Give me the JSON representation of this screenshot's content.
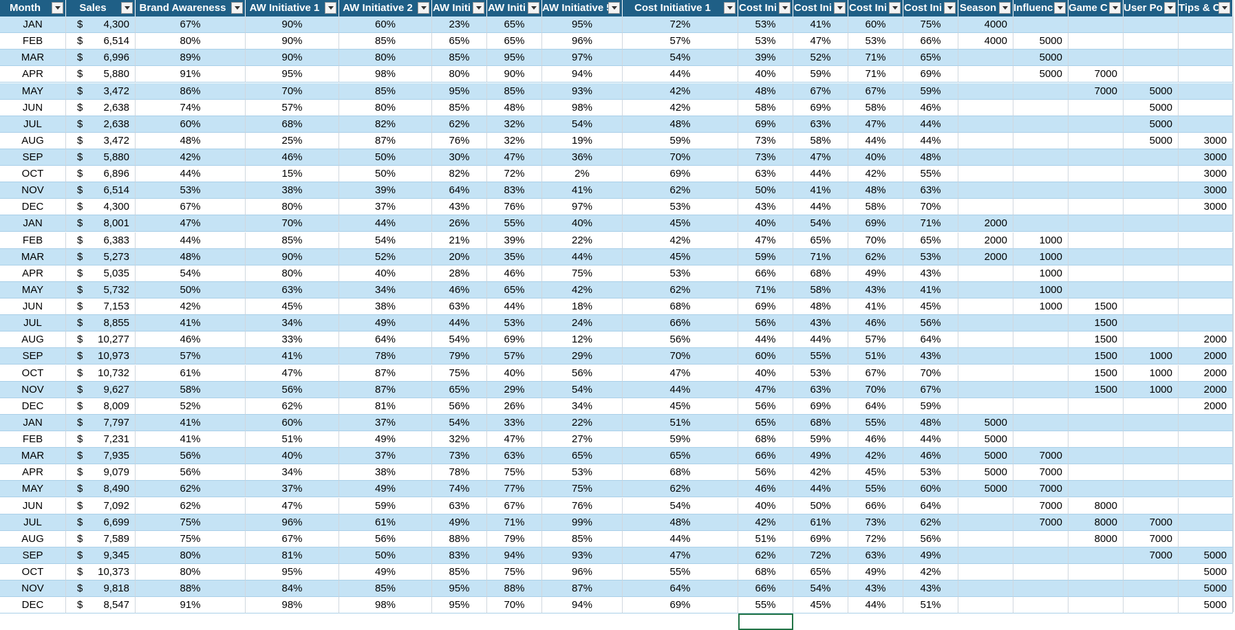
{
  "columns": [
    {
      "key": "month",
      "label": "Month"
    },
    {
      "key": "sales",
      "label": "Sales"
    },
    {
      "key": "brand",
      "label": "Brand Awareness"
    },
    {
      "key": "aw1",
      "label": "AW Initiative 1"
    },
    {
      "key": "aw2",
      "label": "AW Initiative 2"
    },
    {
      "key": "aw3",
      "label": "AW Initi"
    },
    {
      "key": "aw4",
      "label": "AW Initi"
    },
    {
      "key": "aw5",
      "label": "AW Initiative 5"
    },
    {
      "key": "cost1",
      "label": "Cost Initiative 1"
    },
    {
      "key": "cost2",
      "label": "Cost Ini"
    },
    {
      "key": "cost3",
      "label": "Cost Ini"
    },
    {
      "key": "cost4",
      "label": "Cost Ini"
    },
    {
      "key": "cost5",
      "label": "Cost Ini"
    },
    {
      "key": "season",
      "label": "Season"
    },
    {
      "key": "influencer",
      "label": "Influenc"
    },
    {
      "key": "game",
      "label": "Game C"
    },
    {
      "key": "userpo",
      "label": "User Po"
    },
    {
      "key": "tips",
      "label": "Tips & C"
    }
  ],
  "currency_symbol": "$",
  "selected_cell": {
    "row": 36,
    "col": "cost2"
  },
  "rows": [
    [
      "JAN",
      "4,300",
      "67%",
      "90%",
      "60%",
      "23%",
      "65%",
      "95%",
      "72%",
      "53%",
      "41%",
      "60%",
      "75%",
      "4000",
      "",
      "",
      "",
      ""
    ],
    [
      "FEB",
      "6,514",
      "80%",
      "90%",
      "85%",
      "65%",
      "65%",
      "96%",
      "57%",
      "53%",
      "47%",
      "53%",
      "66%",
      "4000",
      "5000",
      "",
      "",
      ""
    ],
    [
      "MAR",
      "6,996",
      "89%",
      "90%",
      "80%",
      "85%",
      "95%",
      "97%",
      "54%",
      "39%",
      "52%",
      "71%",
      "65%",
      "",
      "5000",
      "",
      "",
      ""
    ],
    [
      "APR",
      "5,880",
      "91%",
      "95%",
      "98%",
      "80%",
      "90%",
      "94%",
      "44%",
      "40%",
      "59%",
      "71%",
      "69%",
      "",
      "5000",
      "7000",
      "",
      ""
    ],
    [
      "MAY",
      "3,472",
      "86%",
      "70%",
      "85%",
      "95%",
      "85%",
      "93%",
      "42%",
      "48%",
      "67%",
      "67%",
      "59%",
      "",
      "",
      "7000",
      "5000",
      ""
    ],
    [
      "JUN",
      "2,638",
      "74%",
      "57%",
      "80%",
      "85%",
      "48%",
      "98%",
      "42%",
      "58%",
      "69%",
      "58%",
      "46%",
      "",
      "",
      "",
      "5000",
      ""
    ],
    [
      "JUL",
      "2,638",
      "60%",
      "68%",
      "82%",
      "62%",
      "32%",
      "54%",
      "48%",
      "69%",
      "63%",
      "47%",
      "44%",
      "",
      "",
      "",
      "5000",
      ""
    ],
    [
      "AUG",
      "3,472",
      "48%",
      "25%",
      "87%",
      "76%",
      "32%",
      "19%",
      "59%",
      "73%",
      "58%",
      "44%",
      "44%",
      "",
      "",
      "",
      "5000",
      "3000"
    ],
    [
      "SEP",
      "5,880",
      "42%",
      "46%",
      "50%",
      "30%",
      "47%",
      "36%",
      "70%",
      "73%",
      "47%",
      "40%",
      "48%",
      "",
      "",
      "",
      "",
      "3000"
    ],
    [
      "OCT",
      "6,896",
      "44%",
      "15%",
      "50%",
      "82%",
      "72%",
      "2%",
      "69%",
      "63%",
      "44%",
      "42%",
      "55%",
      "",
      "",
      "",
      "",
      "3000"
    ],
    [
      "NOV",
      "6,514",
      "53%",
      "38%",
      "39%",
      "64%",
      "83%",
      "41%",
      "62%",
      "50%",
      "41%",
      "48%",
      "63%",
      "",
      "",
      "",
      "",
      "3000"
    ],
    [
      "DEC",
      "4,300",
      "67%",
      "80%",
      "37%",
      "43%",
      "76%",
      "97%",
      "53%",
      "43%",
      "44%",
      "58%",
      "70%",
      "",
      "",
      "",
      "",
      "3000"
    ],
    [
      "JAN",
      "8,001",
      "47%",
      "70%",
      "44%",
      "26%",
      "55%",
      "40%",
      "45%",
      "40%",
      "54%",
      "69%",
      "71%",
      "2000",
      "",
      "",
      "",
      ""
    ],
    [
      "FEB",
      "6,383",
      "44%",
      "85%",
      "54%",
      "21%",
      "39%",
      "22%",
      "42%",
      "47%",
      "65%",
      "70%",
      "65%",
      "2000",
      "1000",
      "",
      "",
      ""
    ],
    [
      "MAR",
      "5,273",
      "48%",
      "90%",
      "52%",
      "20%",
      "35%",
      "44%",
      "45%",
      "59%",
      "71%",
      "62%",
      "53%",
      "2000",
      "1000",
      "",
      "",
      ""
    ],
    [
      "APR",
      "5,035",
      "54%",
      "80%",
      "40%",
      "28%",
      "46%",
      "75%",
      "53%",
      "66%",
      "68%",
      "49%",
      "43%",
      "",
      "1000",
      "",
      "",
      ""
    ],
    [
      "MAY",
      "5,732",
      "50%",
      "63%",
      "34%",
      "46%",
      "65%",
      "42%",
      "62%",
      "71%",
      "58%",
      "43%",
      "41%",
      "",
      "1000",
      "",
      "",
      ""
    ],
    [
      "JUN",
      "7,153",
      "42%",
      "45%",
      "38%",
      "63%",
      "44%",
      "18%",
      "68%",
      "69%",
      "48%",
      "41%",
      "45%",
      "",
      "1000",
      "1500",
      "",
      ""
    ],
    [
      "JUL",
      "8,855",
      "41%",
      "34%",
      "49%",
      "44%",
      "53%",
      "24%",
      "66%",
      "56%",
      "43%",
      "46%",
      "56%",
      "",
      "",
      "1500",
      "",
      ""
    ],
    [
      "AUG",
      "10,277",
      "46%",
      "33%",
      "64%",
      "54%",
      "69%",
      "12%",
      "56%",
      "44%",
      "44%",
      "57%",
      "64%",
      "",
      "",
      "1500",
      "",
      "2000"
    ],
    [
      "SEP",
      "10,973",
      "57%",
      "41%",
      "78%",
      "79%",
      "57%",
      "29%",
      "70%",
      "60%",
      "55%",
      "51%",
      "43%",
      "",
      "",
      "1500",
      "1000",
      "2000"
    ],
    [
      "OCT",
      "10,732",
      "61%",
      "47%",
      "87%",
      "75%",
      "40%",
      "56%",
      "47%",
      "40%",
      "53%",
      "67%",
      "70%",
      "",
      "",
      "1500",
      "1000",
      "2000"
    ],
    [
      "NOV",
      "9,627",
      "58%",
      "56%",
      "87%",
      "65%",
      "29%",
      "54%",
      "44%",
      "47%",
      "63%",
      "70%",
      "67%",
      "",
      "",
      "1500",
      "1000",
      "2000"
    ],
    [
      "DEC",
      "8,009",
      "52%",
      "62%",
      "81%",
      "56%",
      "26%",
      "34%",
      "45%",
      "56%",
      "69%",
      "64%",
      "59%",
      "",
      "",
      "",
      "",
      "2000"
    ],
    [
      "JAN",
      "7,797",
      "41%",
      "60%",
      "37%",
      "54%",
      "33%",
      "22%",
      "51%",
      "65%",
      "68%",
      "55%",
      "48%",
      "5000",
      "",
      "",
      "",
      ""
    ],
    [
      "FEB",
      "7,231",
      "41%",
      "51%",
      "49%",
      "32%",
      "47%",
      "27%",
      "59%",
      "68%",
      "59%",
      "46%",
      "44%",
      "5000",
      "",
      "",
      "",
      ""
    ],
    [
      "MAR",
      "7,935",
      "56%",
      "40%",
      "37%",
      "73%",
      "63%",
      "65%",
      "65%",
      "66%",
      "49%",
      "42%",
      "46%",
      "5000",
      "7000",
      "",
      "",
      ""
    ],
    [
      "APR",
      "9,079",
      "56%",
      "34%",
      "38%",
      "78%",
      "75%",
      "53%",
      "68%",
      "56%",
      "42%",
      "45%",
      "53%",
      "5000",
      "7000",
      "",
      "",
      ""
    ],
    [
      "MAY",
      "8,490",
      "62%",
      "37%",
      "49%",
      "74%",
      "77%",
      "75%",
      "62%",
      "46%",
      "44%",
      "55%",
      "60%",
      "5000",
      "7000",
      "",
      "",
      ""
    ],
    [
      "JUN",
      "7,092",
      "62%",
      "47%",
      "59%",
      "63%",
      "67%",
      "76%",
      "54%",
      "40%",
      "50%",
      "66%",
      "64%",
      "",
      "7000",
      "8000",
      "",
      ""
    ],
    [
      "JUL",
      "6,699",
      "75%",
      "96%",
      "61%",
      "49%",
      "71%",
      "99%",
      "48%",
      "42%",
      "61%",
      "73%",
      "62%",
      "",
      "7000",
      "8000",
      "7000",
      ""
    ],
    [
      "AUG",
      "7,589",
      "75%",
      "67%",
      "56%",
      "88%",
      "79%",
      "85%",
      "44%",
      "51%",
      "69%",
      "72%",
      "56%",
      "",
      "",
      "8000",
      "7000",
      ""
    ],
    [
      "SEP",
      "9,345",
      "80%",
      "81%",
      "50%",
      "83%",
      "94%",
      "93%",
      "47%",
      "62%",
      "72%",
      "63%",
      "49%",
      "",
      "",
      "",
      "7000",
      "5000"
    ],
    [
      "OCT",
      "10,373",
      "80%",
      "95%",
      "49%",
      "85%",
      "75%",
      "96%",
      "55%",
      "68%",
      "65%",
      "49%",
      "42%",
      "",
      "",
      "",
      "",
      "5000"
    ],
    [
      "NOV",
      "9,818",
      "88%",
      "84%",
      "85%",
      "95%",
      "88%",
      "87%",
      "64%",
      "66%",
      "54%",
      "43%",
      "43%",
      "",
      "",
      "",
      "",
      "5000"
    ],
    [
      "DEC",
      "8,547",
      "91%",
      "98%",
      "98%",
      "95%",
      "70%",
      "94%",
      "69%",
      "55%",
      "45%",
      "44%",
      "51%",
      "",
      "",
      "",
      "",
      "5000"
    ]
  ]
}
